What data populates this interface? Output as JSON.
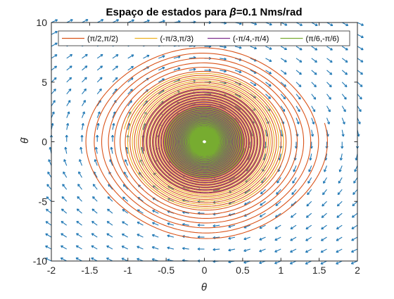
{
  "chart_data": {
    "type": "line",
    "title_prefix": "Espaço de estados para ",
    "title_symbol": "β",
    "title_suffix": "=0.1 Nms/rad",
    "xlabel": "θ",
    "ylabel": "θ̇",
    "xlim": [
      -2,
      2
    ],
    "ylim": [
      -10,
      10
    ],
    "x_ticks": [
      -2,
      -1.5,
      -1,
      -0.5,
      0,
      0.5,
      1,
      1.5,
      2
    ],
    "x_tick_labels": [
      "-2",
      "-1.5",
      "-1",
      "-0.5",
      "0",
      "0.5",
      "1",
      "1.5",
      "2"
    ],
    "y_ticks": [
      -10,
      -5,
      0,
      5,
      10
    ],
    "y_tick_labels": [
      "-10",
      "-5",
      "0",
      "5",
      "10"
    ],
    "grid": false,
    "legend_position": "top",
    "legend_orientation": "horizontal",
    "quiver_color": "#1f77b4",
    "series": [
      {
        "name": "(π/2,π/2)",
        "color": "#d95319",
        "x0": 1.5708,
        "y0": 1.5708
      },
      {
        "name": "(-π/3,π/3)",
        "color": "#edb120",
        "x0": -1.0472,
        "y0": 1.0472
      },
      {
        "name": "(-π/4,-π/4)",
        "color": "#7e2f8e",
        "x0": -0.7854,
        "y0": -0.7854
      },
      {
        "name": "(π/6,-π/6)",
        "color": "#77ac30",
        "x0": 0.5236,
        "y0": -0.5236
      }
    ]
  }
}
